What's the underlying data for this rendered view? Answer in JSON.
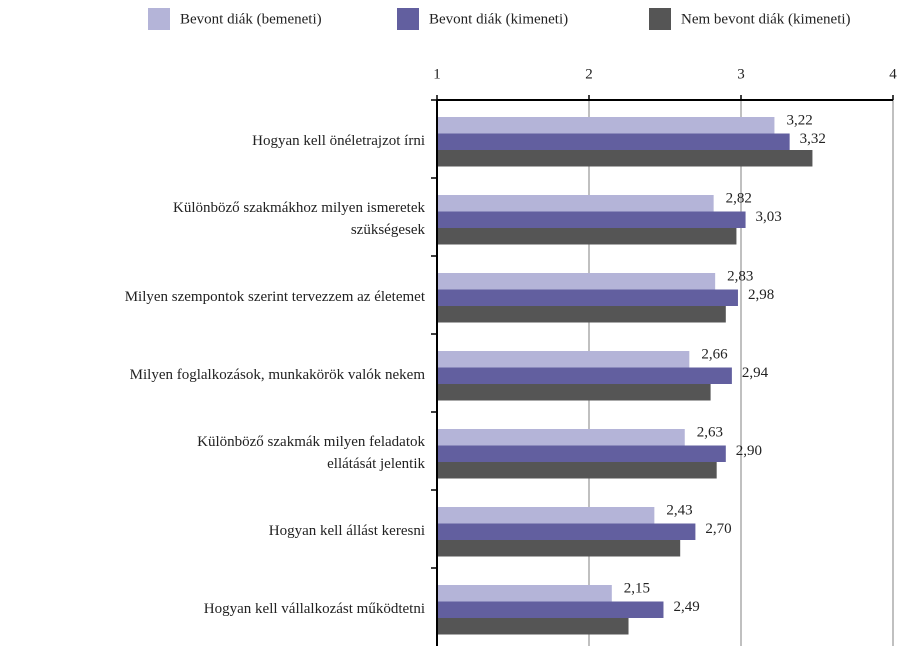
{
  "chart_data": {
    "type": "bar",
    "orientation": "horizontal",
    "categories": [
      "Hogyan kell önéletrajzot írni",
      "Különböző szakmákhoz milyen ismeretek\nszükségesek",
      "Milyen szempontok szerint tervezzem az életemet",
      "Milyen foglalkozások, munkakörök valók nekem",
      "Különböző szakmák milyen feladatok\nellátását jelentik",
      "Hogyan kell állást keresni",
      "Hogyan kell vállalkozást működtetni"
    ],
    "series": [
      {
        "name": "Bevont diák (bemeneti)",
        "color": "#b4b4d8",
        "values": [
          3.22,
          2.82,
          2.83,
          2.66,
          2.63,
          2.43,
          2.15
        ],
        "value_labels": [
          "3,22",
          "2,82",
          "2,83",
          "2,66",
          "2,63",
          "2,43",
          "2,15"
        ]
      },
      {
        "name": "Bevont diák (kimeneti)",
        "color": "#625f9f",
        "values": [
          3.32,
          3.03,
          2.98,
          2.94,
          2.9,
          2.7,
          2.49
        ],
        "value_labels": [
          "3,32",
          "3,03",
          "2,98",
          "2,94",
          "2,90",
          "2,70",
          "2,49"
        ]
      },
      {
        "name": "Nem bevont diák (kimeneti)",
        "color": "#555555",
        "values": [
          3.47,
          2.97,
          2.9,
          2.8,
          2.84,
          2.6,
          2.26
        ]
      }
    ],
    "xlim": [
      1,
      4
    ],
    "xticks": [
      1,
      2,
      3,
      4
    ],
    "grid": true,
    "legend": "top"
  }
}
